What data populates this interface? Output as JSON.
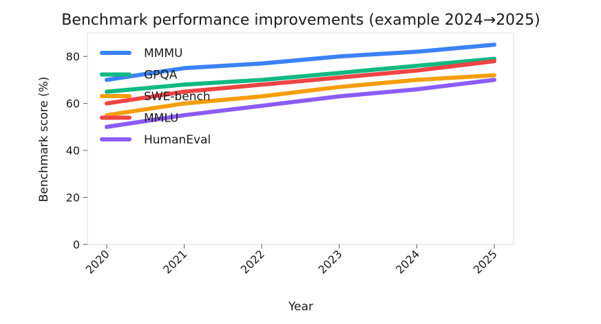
{
  "chart_data": {
    "type": "line",
    "title": "Benchmark performance improvements (example 2024→2025)",
    "xlabel": "Year",
    "ylabel": "Benchmark score (%)",
    "x": [
      "2020",
      "2021",
      "2022",
      "2023",
      "2024",
      "2025"
    ],
    "ylim": [
      0,
      90
    ],
    "yticks": [
      0,
      20,
      40,
      60,
      80
    ],
    "grid": false,
    "legend_position": "top-left",
    "series": [
      {
        "name": "MMMU",
        "color": "#3b82f6",
        "values": [
          70,
          75,
          77,
          80,
          82,
          85
        ]
      },
      {
        "name": "GPQA",
        "color": "#10b981",
        "values": [
          65,
          68,
          70,
          73,
          76,
          79
        ]
      },
      {
        "name": "SWE-bench",
        "color": "#f59e0b",
        "values": [
          55,
          60,
          63,
          67,
          70,
          72
        ]
      },
      {
        "name": "MMLU",
        "color": "#ef4444",
        "values": [
          60,
          65,
          68,
          71,
          74,
          78
        ]
      },
      {
        "name": "HumanEval",
        "color": "#8b5cf6",
        "values": [
          50,
          55,
          59,
          63,
          66,
          70
        ]
      }
    ]
  }
}
